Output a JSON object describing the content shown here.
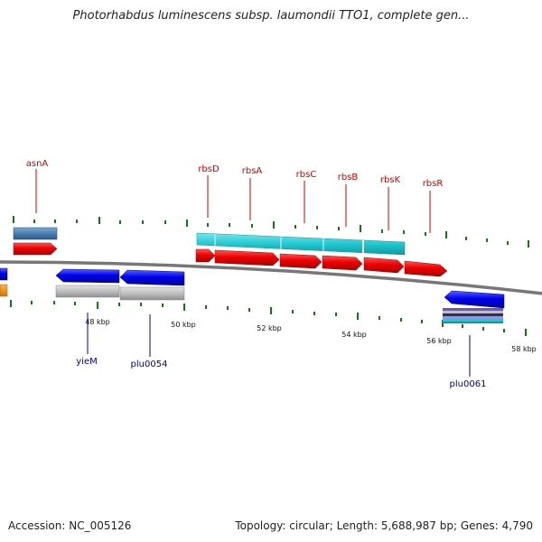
{
  "title": "Photorhabdus luminescens subsp. laumondii TTO1, complete gen...",
  "footer": {
    "accession_label": "Accession:",
    "accession_value": "NC_005126",
    "topology_label": "Topology:",
    "topology_value": "circular",
    "length_label": "Length:",
    "length_value": "5,688,987 bp",
    "genes_label": "Genes:",
    "genes_value": "4,790"
  },
  "scale_labels": [
    "48 kbp",
    "50 kbp",
    "52 kbp",
    "54 kbp",
    "56 kbp",
    "58 kbp"
  ],
  "genes_forward": [
    "asnA",
    "rbsD",
    "rbsA",
    "rbsC",
    "rbsB",
    "rbsK",
    "rbsR"
  ],
  "genes_reverse": [
    "yieM",
    "plu0054",
    "plu0061"
  ],
  "colors": {
    "forward_label": "#cc0000",
    "reverse_label": "#000099",
    "forward_gene": "#ee0000",
    "reverse_gene": "#0000dd",
    "cds_forward_band": "#1ac4cc",
    "pseudo_band": "#b8b8b8",
    "backbone": "#777777",
    "tick_green": "#117711",
    "steel_block": "#4a7fb0",
    "orange_block": "#ee8800"
  }
}
